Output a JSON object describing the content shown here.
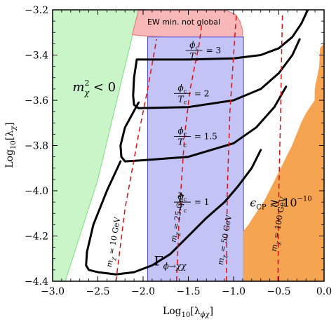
{
  "chart_data": {
    "type": "area",
    "xlim": [
      -3.0,
      0.0
    ],
    "ylim": [
      -4.4,
      -3.2
    ],
    "x_ticks": [
      -3.0,
      -2.5,
      -2.0,
      -1.5,
      -1.0,
      -0.5,
      0.0
    ],
    "x_tick_labels": [
      "−3.0",
      "−2.5",
      "−2.0",
      "−1.5",
      "−1.0",
      "−0.5",
      "0.0"
    ],
    "y_ticks": [
      -3.2,
      -3.4,
      -3.6,
      -3.8,
      -4.0,
      -4.2,
      -4.4
    ],
    "y_tick_labels": [
      "−3.2",
      "−3.4",
      "−3.6",
      "−3.8",
      "−4.0",
      "−4.2",
      "−4.4"
    ],
    "xlabel_base": "Log",
    "xlabel_sub": "10",
    "xlabel_arg": "[λ",
    "xlabel_argsub": "ϕχ",
    "xlabel_close": "]",
    "ylabel_base": "Log",
    "ylabel_sub": "10",
    "ylabel_arg": "[λ",
    "ylabel_argsub": "χ",
    "ylabel_close": "]",
    "colors": {
      "green": "#c9f5c9",
      "green_edge": "#7de07d",
      "blue": "#c3c3f5",
      "blue_edge": "#4f4fe0",
      "pink": "#f8b8b8",
      "pink_edge": "#f07070",
      "orange": "#f5a552",
      "contour": "#000000",
      "mass_line": "#e01010"
    },
    "regions": [
      {
        "name": "tachyonic",
        "color": "green",
        "label_main": "m",
        "label_sup": "2",
        "label_sub": "χ",
        "label_rest": " < 0",
        "x": [
          -3.0,
          -2.86,
          -2.5,
          -2.2,
          -2.05,
          -3.0
        ],
        "y": [
          -4.4,
          -4.4,
          -3.95,
          -3.45,
          -3.2,
          -3.2
        ]
      },
      {
        "name": "ew-min-not-global",
        "color": "pink",
        "label": "EW min. not global",
        "x": [
          -2.05,
          -1.1,
          -0.98,
          -0.93,
          -0.9,
          -0.9,
          -1.2,
          -1.6,
          -2.0,
          -2.12
        ],
        "y": [
          -3.2,
          -3.2,
          -3.22,
          -3.25,
          -3.29,
          -3.32,
          -3.33,
          -3.325,
          -3.315,
          -3.31
        ]
      },
      {
        "name": "invisible-decay",
        "color": "blue",
        "label_main": "Γ",
        "label_sub": "ϕ→χχ",
        "x": [
          -1.95,
          -0.89,
          -0.89,
          -1.95
        ],
        "y": [
          -3.32,
          -3.32,
          -4.4,
          -4.4
        ]
      },
      {
        "name": "cp-violation",
        "color": "orange",
        "label_main": "ϵ",
        "label_sub": "CP",
        "label_rel": "≳",
        "label_val": "10",
        "label_exp": "−10",
        "x": [
          0.0,
          0.0,
          -0.04,
          -0.05,
          -0.1,
          -0.1,
          -0.2,
          -0.25,
          -0.3,
          -0.35,
          -0.4,
          -0.45,
          -0.5,
          -0.55,
          -0.6,
          -0.65,
          -0.7,
          -0.75,
          -0.8,
          -0.83,
          -0.85,
          -0.87,
          -0.89,
          -0.89,
          0.0
        ],
        "y": [
          -4.4,
          -3.35,
          -3.37,
          -3.45,
          -3.55,
          -3.6,
          -3.66,
          -3.7,
          -3.75,
          -3.8,
          -3.84,
          -3.88,
          -3.92,
          -3.96,
          -4.0,
          -4.04,
          -4.07,
          -4.1,
          -4.13,
          -4.15,
          -4.16,
          -4.17,
          -4.18,
          -4.4,
          -4.4
        ]
      }
    ],
    "series": [
      {
        "name": "ratio-3",
        "label_num": "ϕ",
        "label_num_sub": "c",
        "label_den": "T",
        "label_den_sub": "c",
        "label_value": "= 3",
        "x": [
          -2.07,
          -1.5,
          -1.0,
          -0.7,
          -0.5,
          -0.35,
          -0.25,
          -0.18
        ],
        "y": [
          -3.42,
          -3.42,
          -3.415,
          -3.4,
          -3.37,
          -3.32,
          -3.26,
          -3.2
        ]
      },
      {
        "name": "ratio-2",
        "label_num": "ϕ",
        "label_num_sub": "c",
        "label_den": "T",
        "label_den_sub": "c",
        "label_value": "= 2",
        "x": [
          -2.07,
          -2.1,
          -2.11,
          -2.1,
          -2.05,
          -1.5,
          -1.0,
          -0.7,
          -0.5,
          -0.35,
          -0.27
        ],
        "y": [
          -3.42,
          -3.5,
          -3.58,
          -3.62,
          -3.635,
          -3.63,
          -3.6,
          -3.55,
          -3.48,
          -3.4,
          -3.33
        ]
      },
      {
        "name": "ratio-1.5",
        "label_num": "ϕ",
        "label_num_sub": "c",
        "label_den": "T",
        "label_den_sub": "c",
        "label_value": "= 1.5",
        "x": [
          -2.05,
          -2.2,
          -2.25,
          -2.24,
          -2.2,
          -2.0,
          -1.5,
          -1.0,
          -0.75,
          -0.55,
          -0.42
        ],
        "y": [
          -3.61,
          -3.72,
          -3.8,
          -3.85,
          -3.87,
          -3.865,
          -3.85,
          -3.79,
          -3.72,
          -3.63,
          -3.54
        ]
      },
      {
        "name": "ratio-1",
        "label_num": "ϕ",
        "label_num_sub": "c",
        "label_den": "T",
        "label_den_sub": "c",
        "label_value": "= 1",
        "x": [
          -2.25,
          -2.4,
          -2.55,
          -2.62,
          -2.63,
          -2.6,
          -2.5,
          -2.3,
          -2.1,
          -1.9,
          -1.7,
          -1.5,
          -1.3,
          -1.1,
          -0.95,
          -0.8,
          -0.7
        ],
        "y": [
          -3.87,
          -4.0,
          -4.15,
          -4.27,
          -4.33,
          -4.35,
          -4.36,
          -4.37,
          -4.36,
          -4.33,
          -4.28,
          -4.2,
          -4.12,
          -4.05,
          -3.98,
          -3.9,
          -3.82
        ]
      }
    ],
    "mass_lines": [
      {
        "name": "mass-10",
        "label_main": "m",
        "label_sub": "χ",
        "label_rest": " = 10 GeV",
        "x": [
          -2.3,
          -2.2,
          -2.05,
          -1.95,
          -1.85
        ],
        "y": [
          -4.4,
          -4.08,
          -3.75,
          -3.55,
          -3.33
        ]
      },
      {
        "name": "mass-25",
        "label_main": "m",
        "label_sub": "χ",
        "label_rest": " = 25 GeV",
        "x": [
          -1.63,
          -1.6,
          -1.54,
          -1.48,
          -1.43,
          -1.38,
          -1.35
        ],
        "y": [
          -4.4,
          -4.1,
          -3.75,
          -3.55,
          -3.45,
          -3.35,
          -3.26
        ]
      },
      {
        "name": "mass-50",
        "label_main": "m",
        "label_sub": "χ",
        "label_rest": " = 50 GeV",
        "x": [
          -1.08,
          -1.07,
          -1.04,
          -1.0,
          -0.97
        ],
        "y": [
          -4.4,
          -4.0,
          -3.65,
          -3.4,
          -3.22
        ]
      },
      {
        "name": "mass-100",
        "label_main": "m",
        "label_sub": "χ",
        "label_rest": " = 100 GeV",
        "x": [
          -0.51,
          -0.5,
          -0.48,
          -0.47,
          -0.46
        ],
        "y": [
          -4.4,
          -4.0,
          -3.65,
          -3.4,
          -3.22
        ]
      }
    ]
  }
}
